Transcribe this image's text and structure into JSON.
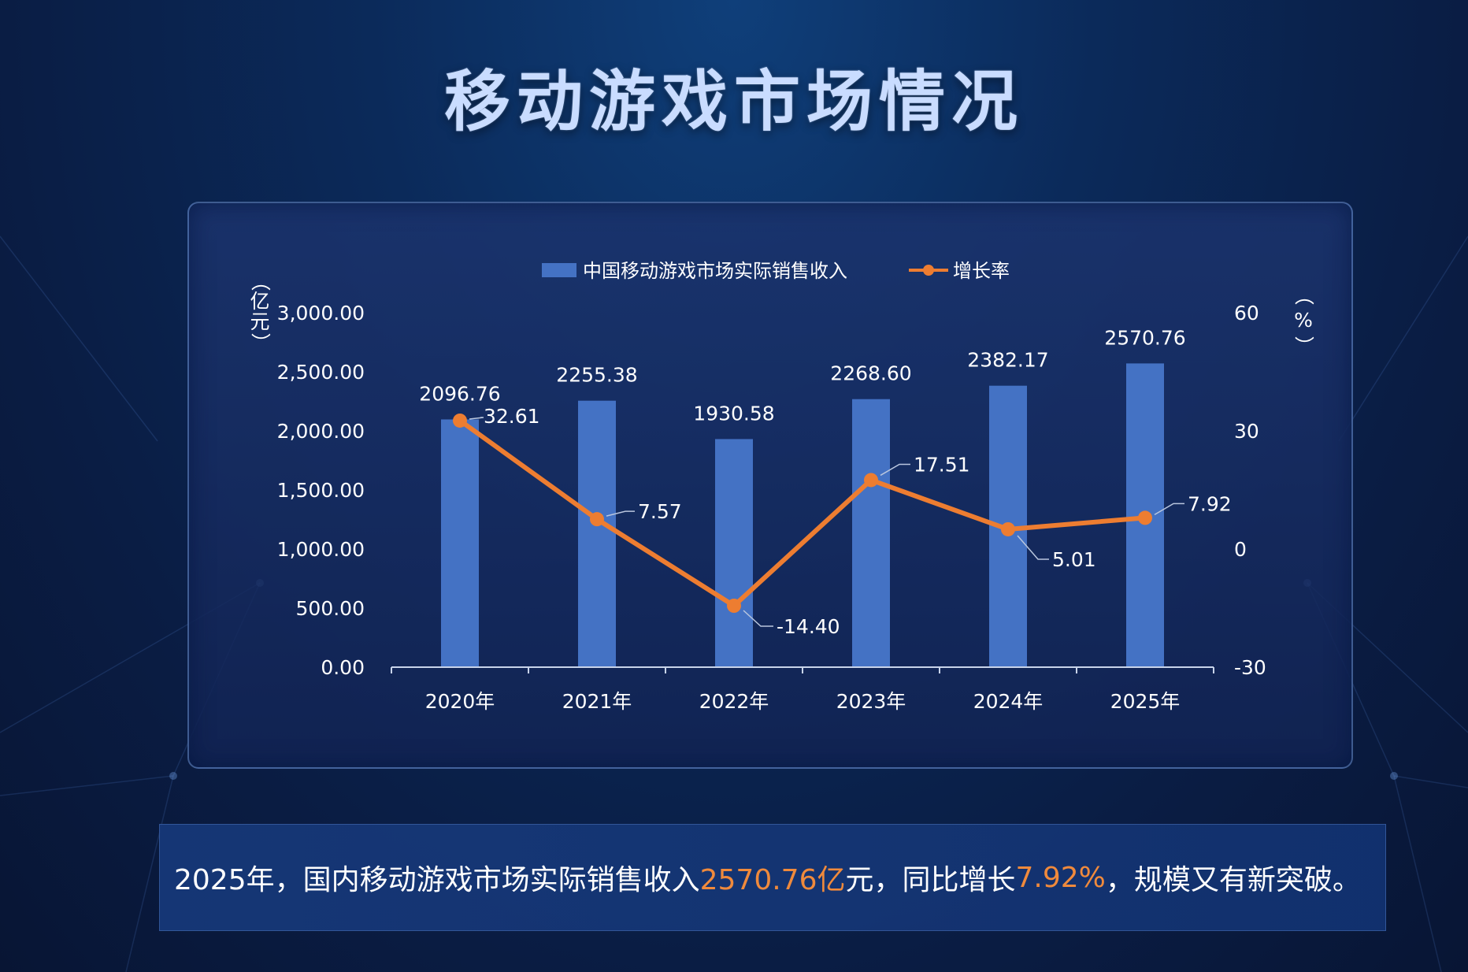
{
  "page": {
    "title": "移动游戏市场情况"
  },
  "chart_data": {
    "type": "bar",
    "categories": [
      "2020年",
      "2021年",
      "2022年",
      "2023年",
      "2024年",
      "2025年"
    ],
    "series": [
      {
        "name": "中国移动游戏市场实际销售收入",
        "type": "bar",
        "axis": "left",
        "values": [
          2096.76,
          2255.38,
          1930.58,
          2268.6,
          2382.17,
          2570.76
        ],
        "labels": [
          "2096.76",
          "2255.38",
          "1930.58",
          "2268.60",
          "2382.17",
          "2570.76"
        ]
      },
      {
        "name": "增长率",
        "type": "line",
        "axis": "right",
        "values": [
          32.61,
          7.57,
          -14.4,
          17.51,
          5.01,
          7.92
        ],
        "labels": [
          "32.61",
          "7.57",
          "-14.40",
          "17.51",
          "5.01",
          "7.92"
        ]
      }
    ],
    "y_left": {
      "label": "（亿元）",
      "ylim": [
        0,
        3000
      ],
      "ticks": [
        "0.00",
        "500.00",
        "1,000.00",
        "1,500.00",
        "2,000.00",
        "2,500.00",
        "3,000.00"
      ]
    },
    "y_right": {
      "label": "（%）",
      "ylim": [
        -30,
        60
      ],
      "ticks": [
        "-30",
        "0",
        "30",
        "60"
      ]
    },
    "legend": "top-center",
    "grid": false,
    "colors": {
      "bar": "#4472c4",
      "line": "#ed7d31",
      "text": "#ffffff"
    }
  },
  "summary": {
    "prefix": "2025年，国内移动游戏市场实际销售收入",
    "revenue": "2570.76亿",
    "middle": "元，同比增长",
    "growth": "7.92%",
    "suffix": "，规模又有新突破。",
    "highlight_color": "#f08a3c"
  }
}
